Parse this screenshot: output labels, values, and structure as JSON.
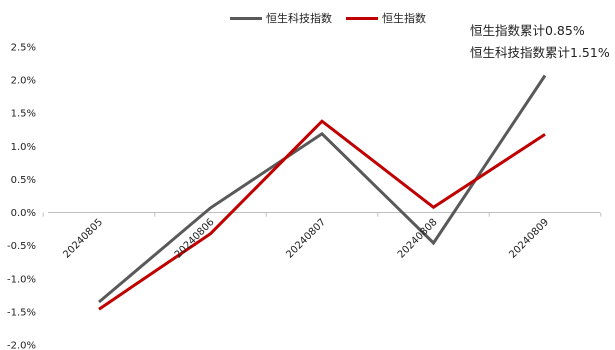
{
  "chart_data": {
    "type": "line",
    "categories": [
      "20240805",
      "20240806",
      "20240807",
      "20240808",
      "20240809"
    ],
    "series": [
      {
        "name": "恒生科技指数",
        "values": [
          -1.35,
          0.07,
          1.19,
          -0.46,
          2.07
        ],
        "color": "#595959"
      },
      {
        "name": "恒生指数",
        "values": [
          -1.46,
          -0.32,
          1.38,
          0.08,
          1.18
        ],
        "color": "#c00000"
      }
    ],
    "ylim": [
      -2.0,
      2.5
    ],
    "yticks": [
      "2.5%",
      "2.0%",
      "1.5%",
      "1.0%",
      "0.5%",
      "0.0%",
      "-0.5%",
      "-1.0%",
      "-1.5%",
      "-2.0%"
    ],
    "ytick_values": [
      2.5,
      2.0,
      1.5,
      1.0,
      0.5,
      0.0,
      -0.5,
      -1.0,
      -1.5,
      -2.0
    ],
    "legend": "top-center",
    "annotations": [
      "恒生指数累计0.85%",
      "恒生科技指数累计1.51%"
    ],
    "grid": false
  }
}
